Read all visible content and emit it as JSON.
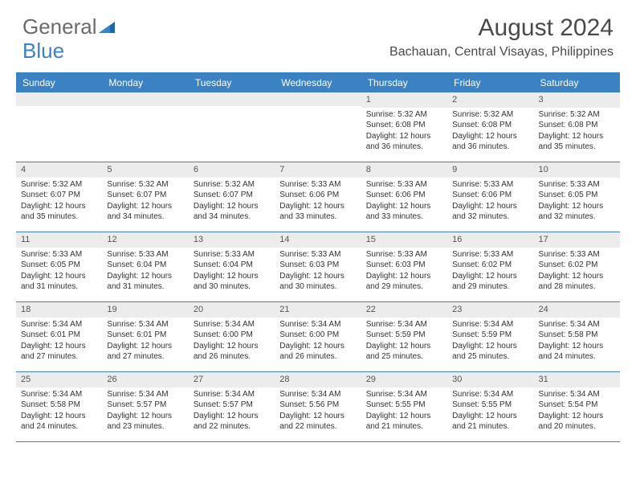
{
  "logo": {
    "part1": "General",
    "part2": "Blue"
  },
  "title": "August 2024",
  "location": "Bachauan, Central Visayas, Philippines",
  "colors": {
    "accent": "#3b82c4",
    "header_text": "#ffffff",
    "day_num_bg": "#ececec",
    "body_text": "#333333",
    "title_text": "#4a4a4a",
    "logo_gray": "#6b6b6b"
  },
  "day_names": [
    "Sunday",
    "Monday",
    "Tuesday",
    "Wednesday",
    "Thursday",
    "Friday",
    "Saturday"
  ],
  "weeks": [
    [
      {
        "n": "",
        "sr": "",
        "ss": "",
        "dl": ""
      },
      {
        "n": "",
        "sr": "",
        "ss": "",
        "dl": ""
      },
      {
        "n": "",
        "sr": "",
        "ss": "",
        "dl": ""
      },
      {
        "n": "",
        "sr": "",
        "ss": "",
        "dl": ""
      },
      {
        "n": "1",
        "sr": "Sunrise: 5:32 AM",
        "ss": "Sunset: 6:08 PM",
        "dl": "Daylight: 12 hours and 36 minutes."
      },
      {
        "n": "2",
        "sr": "Sunrise: 5:32 AM",
        "ss": "Sunset: 6:08 PM",
        "dl": "Daylight: 12 hours and 36 minutes."
      },
      {
        "n": "3",
        "sr": "Sunrise: 5:32 AM",
        "ss": "Sunset: 6:08 PM",
        "dl": "Daylight: 12 hours and 35 minutes."
      }
    ],
    [
      {
        "n": "4",
        "sr": "Sunrise: 5:32 AM",
        "ss": "Sunset: 6:07 PM",
        "dl": "Daylight: 12 hours and 35 minutes."
      },
      {
        "n": "5",
        "sr": "Sunrise: 5:32 AM",
        "ss": "Sunset: 6:07 PM",
        "dl": "Daylight: 12 hours and 34 minutes."
      },
      {
        "n": "6",
        "sr": "Sunrise: 5:32 AM",
        "ss": "Sunset: 6:07 PM",
        "dl": "Daylight: 12 hours and 34 minutes."
      },
      {
        "n": "7",
        "sr": "Sunrise: 5:33 AM",
        "ss": "Sunset: 6:06 PM",
        "dl": "Daylight: 12 hours and 33 minutes."
      },
      {
        "n": "8",
        "sr": "Sunrise: 5:33 AM",
        "ss": "Sunset: 6:06 PM",
        "dl": "Daylight: 12 hours and 33 minutes."
      },
      {
        "n": "9",
        "sr": "Sunrise: 5:33 AM",
        "ss": "Sunset: 6:06 PM",
        "dl": "Daylight: 12 hours and 32 minutes."
      },
      {
        "n": "10",
        "sr": "Sunrise: 5:33 AM",
        "ss": "Sunset: 6:05 PM",
        "dl": "Daylight: 12 hours and 32 minutes."
      }
    ],
    [
      {
        "n": "11",
        "sr": "Sunrise: 5:33 AM",
        "ss": "Sunset: 6:05 PM",
        "dl": "Daylight: 12 hours and 31 minutes."
      },
      {
        "n": "12",
        "sr": "Sunrise: 5:33 AM",
        "ss": "Sunset: 6:04 PM",
        "dl": "Daylight: 12 hours and 31 minutes."
      },
      {
        "n": "13",
        "sr": "Sunrise: 5:33 AM",
        "ss": "Sunset: 6:04 PM",
        "dl": "Daylight: 12 hours and 30 minutes."
      },
      {
        "n": "14",
        "sr": "Sunrise: 5:33 AM",
        "ss": "Sunset: 6:03 PM",
        "dl": "Daylight: 12 hours and 30 minutes."
      },
      {
        "n": "15",
        "sr": "Sunrise: 5:33 AM",
        "ss": "Sunset: 6:03 PM",
        "dl": "Daylight: 12 hours and 29 minutes."
      },
      {
        "n": "16",
        "sr": "Sunrise: 5:33 AM",
        "ss": "Sunset: 6:02 PM",
        "dl": "Daylight: 12 hours and 29 minutes."
      },
      {
        "n": "17",
        "sr": "Sunrise: 5:33 AM",
        "ss": "Sunset: 6:02 PM",
        "dl": "Daylight: 12 hours and 28 minutes."
      }
    ],
    [
      {
        "n": "18",
        "sr": "Sunrise: 5:34 AM",
        "ss": "Sunset: 6:01 PM",
        "dl": "Daylight: 12 hours and 27 minutes."
      },
      {
        "n": "19",
        "sr": "Sunrise: 5:34 AM",
        "ss": "Sunset: 6:01 PM",
        "dl": "Daylight: 12 hours and 27 minutes."
      },
      {
        "n": "20",
        "sr": "Sunrise: 5:34 AM",
        "ss": "Sunset: 6:00 PM",
        "dl": "Daylight: 12 hours and 26 minutes."
      },
      {
        "n": "21",
        "sr": "Sunrise: 5:34 AM",
        "ss": "Sunset: 6:00 PM",
        "dl": "Daylight: 12 hours and 26 minutes."
      },
      {
        "n": "22",
        "sr": "Sunrise: 5:34 AM",
        "ss": "Sunset: 5:59 PM",
        "dl": "Daylight: 12 hours and 25 minutes."
      },
      {
        "n": "23",
        "sr": "Sunrise: 5:34 AM",
        "ss": "Sunset: 5:59 PM",
        "dl": "Daylight: 12 hours and 25 minutes."
      },
      {
        "n": "24",
        "sr": "Sunrise: 5:34 AM",
        "ss": "Sunset: 5:58 PM",
        "dl": "Daylight: 12 hours and 24 minutes."
      }
    ],
    [
      {
        "n": "25",
        "sr": "Sunrise: 5:34 AM",
        "ss": "Sunset: 5:58 PM",
        "dl": "Daylight: 12 hours and 24 minutes."
      },
      {
        "n": "26",
        "sr": "Sunrise: 5:34 AM",
        "ss": "Sunset: 5:57 PM",
        "dl": "Daylight: 12 hours and 23 minutes."
      },
      {
        "n": "27",
        "sr": "Sunrise: 5:34 AM",
        "ss": "Sunset: 5:57 PM",
        "dl": "Daylight: 12 hours and 22 minutes."
      },
      {
        "n": "28",
        "sr": "Sunrise: 5:34 AM",
        "ss": "Sunset: 5:56 PM",
        "dl": "Daylight: 12 hours and 22 minutes."
      },
      {
        "n": "29",
        "sr": "Sunrise: 5:34 AM",
        "ss": "Sunset: 5:55 PM",
        "dl": "Daylight: 12 hours and 21 minutes."
      },
      {
        "n": "30",
        "sr": "Sunrise: 5:34 AM",
        "ss": "Sunset: 5:55 PM",
        "dl": "Daylight: 12 hours and 21 minutes."
      },
      {
        "n": "31",
        "sr": "Sunrise: 5:34 AM",
        "ss": "Sunset: 5:54 PM",
        "dl": "Daylight: 12 hours and 20 minutes."
      }
    ]
  ]
}
